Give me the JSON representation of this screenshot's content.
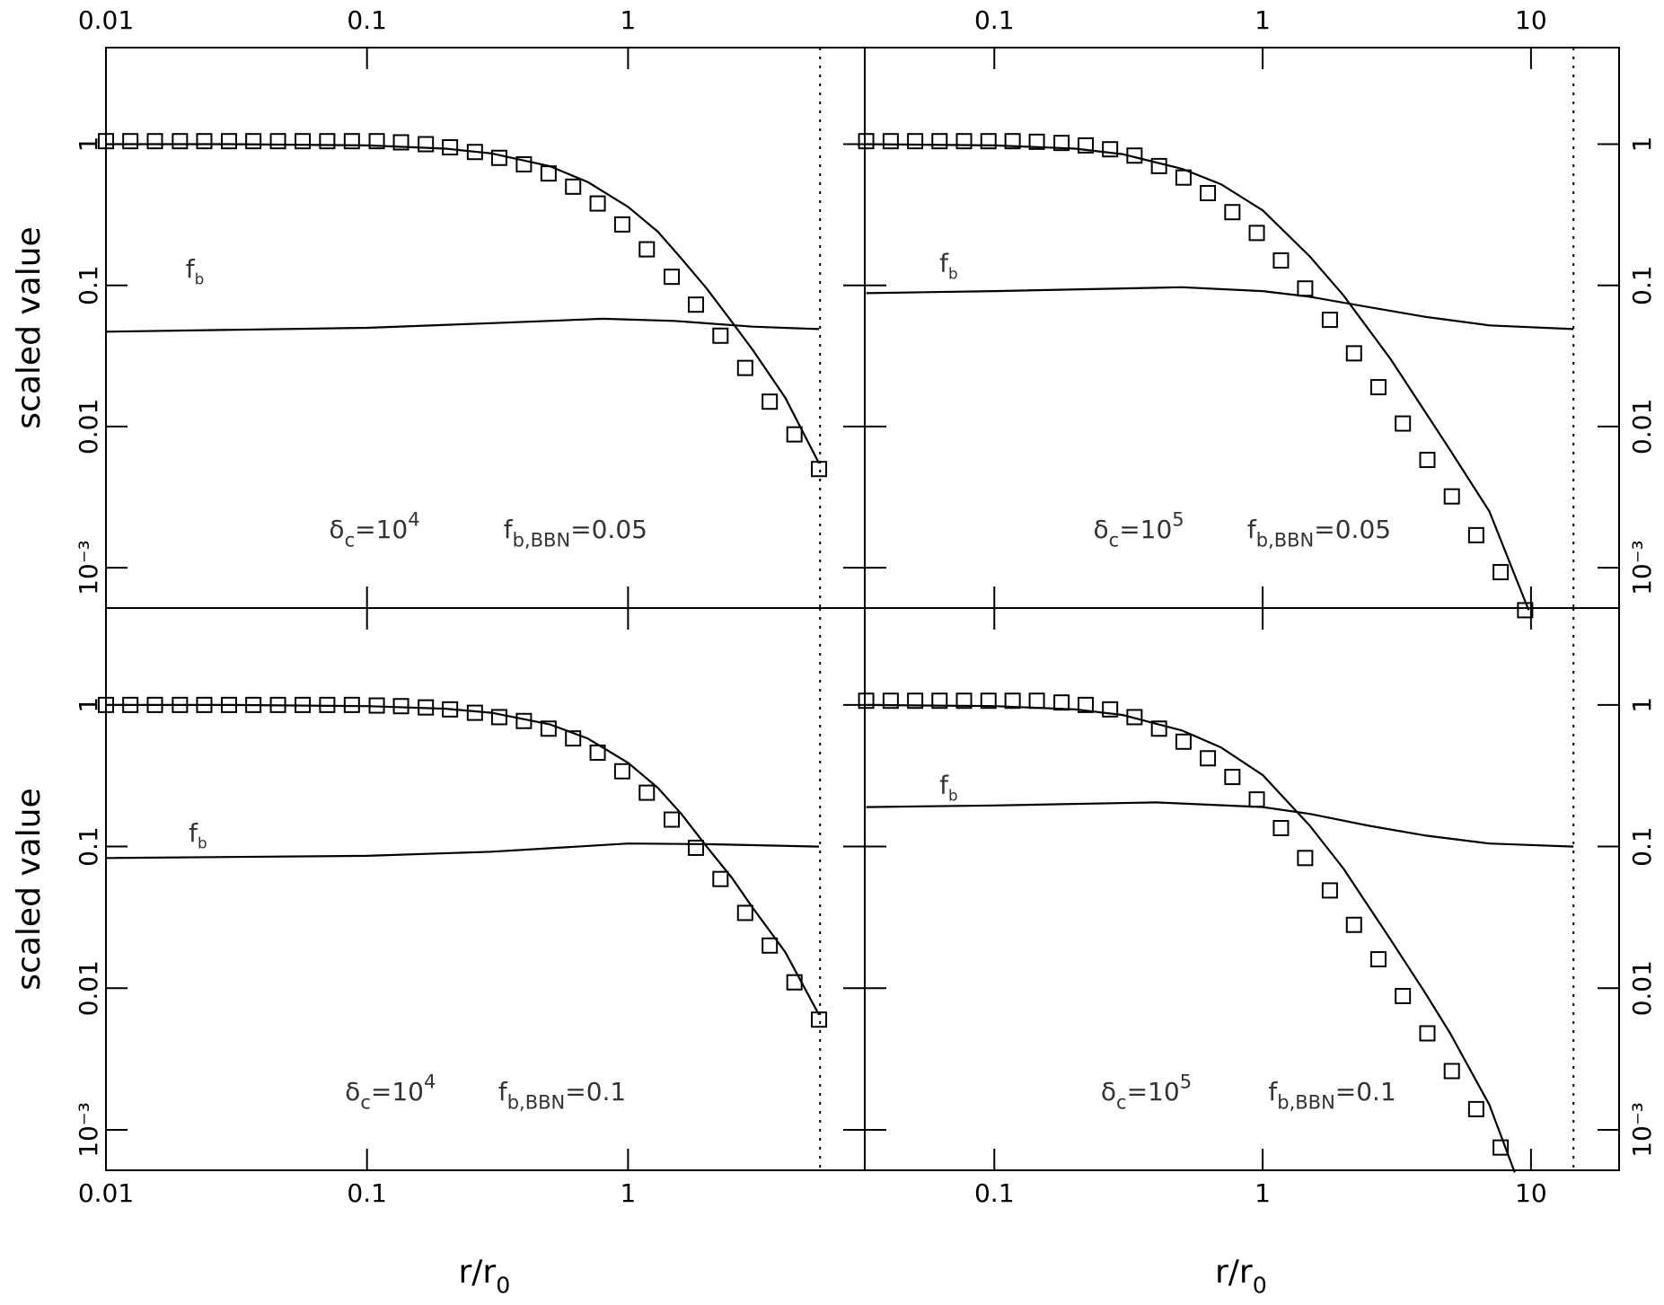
{
  "chart_data": [
    {
      "type": "line",
      "log_x": true,
      "log_y": true,
      "x_tick_labels": "top",
      "y_tick_labels": "left",
      "color": "#000000",
      "ylabel": "scaled value",
      "xlim": [
        0.01,
        8.07
      ],
      "ylim": [
        0.000518,
        4.83
      ],
      "xticks": [
        0.01,
        0.1,
        1
      ],
      "yticks": [
        1,
        0.1,
        0.01,
        {
          "value": 0.001,
          "label": "10⁻³"
        }
      ],
      "vline": 5.44,
      "series": [
        {
          "marker": "square",
          "x": [
            0.01,
            0.0124,
            0.0154,
            0.0192,
            0.0238,
            0.0296,
            0.0367,
            0.0456,
            0.0567,
            0.0704,
            0.0875,
            0.109,
            0.135,
            0.168,
            0.208,
            0.259,
            0.321,
            0.399,
            0.496,
            0.616,
            0.765,
            0.95,
            1.18,
            1.47,
            1.82,
            2.26,
            2.81,
            3.49,
            4.34,
            5.39
          ],
          "values": [
            1.05,
            1.05,
            1.05,
            1.05,
            1.05,
            1.05,
            1.05,
            1.05,
            1.05,
            1.05,
            1.05,
            1.05,
            1.03,
            1.0,
            0.95,
            0.88,
            0.8,
            0.72,
            0.62,
            0.5,
            0.38,
            0.27,
            0.18,
            0.115,
            0.073,
            0.044,
            0.026,
            0.015,
            0.0088,
            0.005
          ]
        },
        {
          "x": [
            0.01,
            0.03,
            0.1,
            0.2,
            0.3,
            0.5,
            0.7,
            1,
            1.3,
            1.6,
            2,
            2.5,
            3,
            4,
            5.39
          ],
          "values": [
            1.0,
            1.0,
            0.98,
            0.93,
            0.86,
            0.7,
            0.54,
            0.36,
            0.24,
            0.155,
            0.095,
            0.055,
            0.035,
            0.016,
            0.0055
          ]
        },
        {
          "x": [
            0.01,
            0.1,
            0.3,
            0.8,
            1.5,
            3,
            5.39
          ],
          "values": [
            0.047,
            0.05,
            0.054,
            0.058,
            0.056,
            0.051,
            0.049
          ]
        }
      ],
      "annotations": [
        {
          "main": "f",
          "sub": "b"
        },
        {
          "main": "δ",
          "sub": "c",
          "after": "=10",
          "sup": "4"
        },
        {
          "main": "f",
          "sub": "b,BBN",
          "after": "=0.05"
        }
      ]
    },
    {
      "type": "line",
      "log_x": true,
      "log_y": true,
      "x_tick_labels": "top",
      "y_tick_labels": "right",
      "color": "#000000",
      "xlim": [
        0.0329,
        21.3
      ],
      "ylim": [
        0.000518,
        4.83
      ],
      "xticks": [
        0.1,
        1,
        10
      ],
      "yticks": [
        1,
        0.1,
        0.01,
        {
          "value": 0.001,
          "label": "10⁻³"
        }
      ],
      "vline": 14.4,
      "series": [
        {
          "marker": "square",
          "x": [
            0.0333,
            0.0411,
            0.0507,
            0.0625,
            0.0771,
            0.0951,
            0.117,
            0.144,
            0.178,
            0.219,
            0.27,
            0.333,
            0.411,
            0.507,
            0.625,
            0.771,
            0.951,
            1.17,
            1.44,
            1.78,
            2.19,
            2.7,
            3.33,
            4.11,
            5.07,
            6.25,
            7.71,
            9.51
          ],
          "values": [
            1.05,
            1.05,
            1.05,
            1.05,
            1.05,
            1.05,
            1.05,
            1.04,
            1.02,
            0.98,
            0.92,
            0.83,
            0.7,
            0.58,
            0.45,
            0.33,
            0.235,
            0.15,
            0.095,
            0.057,
            0.033,
            0.019,
            0.0105,
            0.0058,
            0.0032,
            0.0017,
            0.00093,
            0.0005
          ]
        },
        {
          "x": [
            0.0333,
            0.1,
            0.2,
            0.3,
            0.5,
            0.7,
            1,
            1.5,
            2,
            3,
            4,
            5,
            7,
            9.8
          ],
          "values": [
            1.0,
            0.98,
            0.93,
            0.85,
            0.67,
            0.52,
            0.34,
            0.16,
            0.085,
            0.03,
            0.013,
            0.0068,
            0.0025,
            0.0005
          ]
        },
        {
          "x": [
            0.0333,
            0.1,
            0.5,
            1,
            1.5,
            2.5,
            4,
            7,
            14.4
          ],
          "values": [
            0.088,
            0.091,
            0.097,
            0.091,
            0.083,
            0.07,
            0.06,
            0.052,
            0.049
          ]
        }
      ],
      "annotations": [
        {
          "main": "f",
          "sub": "b"
        },
        {
          "main": "δ",
          "sub": "c",
          "after": "=10",
          "sup": "5"
        },
        {
          "main": "f",
          "sub": "b,BBN",
          "after": "=0.05"
        }
      ]
    },
    {
      "type": "line",
      "log_x": true,
      "log_y": true,
      "x_tick_labels": "bottom",
      "y_tick_labels": "left",
      "color": "#000000",
      "ylabel": "scaled value",
      "xlabel": {
        "main": "r/r",
        "sub": "0"
      },
      "xlim": [
        0.01,
        8.07
      ],
      "ylim": [
        0.000518,
        4.83
      ],
      "xticks": [
        0.01,
        0.1,
        1
      ],
      "yticks": [
        1,
        0.1,
        0.01,
        {
          "value": 0.001,
          "label": "10⁻³"
        }
      ],
      "vline": 5.44,
      "series": [
        {
          "marker": "square",
          "x": [
            0.01,
            0.0124,
            0.0154,
            0.0192,
            0.0238,
            0.0296,
            0.0367,
            0.0456,
            0.0567,
            0.0704,
            0.0875,
            0.109,
            0.135,
            0.168,
            0.208,
            0.259,
            0.321,
            0.399,
            0.496,
            0.616,
            0.765,
            0.95,
            1.18,
            1.47,
            1.82,
            2.26,
            2.81,
            3.49,
            4.34,
            5.39
          ],
          "values": [
            1.0,
            1.0,
            1.0,
            1.0,
            1.0,
            1.0,
            1.0,
            1.0,
            1.0,
            1.0,
            1.0,
            0.99,
            0.98,
            0.96,
            0.93,
            0.88,
            0.82,
            0.77,
            0.68,
            0.58,
            0.46,
            0.34,
            0.24,
            0.155,
            0.098,
            0.059,
            0.034,
            0.02,
            0.011,
            0.006
          ]
        },
        {
          "x": [
            0.01,
            0.03,
            0.1,
            0.2,
            0.3,
            0.5,
            0.7,
            1,
            1.3,
            1.6,
            2,
            2.5,
            3,
            4,
            5.39
          ],
          "values": [
            1.0,
            1.0,
            0.98,
            0.94,
            0.88,
            0.73,
            0.58,
            0.39,
            0.26,
            0.17,
            0.1,
            0.06,
            0.037,
            0.018,
            0.0065
          ]
        },
        {
          "x": [
            0.01,
            0.1,
            0.3,
            1,
            2,
            5.39
          ],
          "values": [
            0.083,
            0.086,
            0.092,
            0.105,
            0.104,
            0.1
          ]
        }
      ],
      "annotations": [
        {
          "main": "f",
          "sub": "b"
        },
        {
          "main": "δ",
          "sub": "c",
          "after": "=10",
          "sup": "4"
        },
        {
          "main": "f",
          "sub": "b,BBN",
          "after": "=0.1"
        }
      ]
    },
    {
      "type": "line",
      "log_x": true,
      "log_y": true,
      "x_tick_labels": "bottom",
      "y_tick_labels": "right",
      "color": "#000000",
      "xlabel": {
        "main": "r/r",
        "sub": "0"
      },
      "xlim": [
        0.0329,
        21.3
      ],
      "ylim": [
        0.000518,
        4.83
      ],
      "xticks": [
        0.1,
        1,
        10
      ],
      "yticks": [
        1,
        0.1,
        0.01,
        {
          "value": 0.001,
          "label": "10⁻³"
        }
      ],
      "vline": 14.4,
      "series": [
        {
          "marker": "square",
          "x": [
            0.0333,
            0.0411,
            0.0507,
            0.0625,
            0.0771,
            0.0951,
            0.117,
            0.144,
            0.178,
            0.219,
            0.27,
            0.333,
            0.411,
            0.507,
            0.625,
            0.771,
            0.951,
            1.17,
            1.44,
            1.78,
            2.19,
            2.7,
            3.33,
            4.11,
            5.07,
            6.25,
            7.71
          ],
          "values": [
            1.07,
            1.07,
            1.07,
            1.07,
            1.07,
            1.07,
            1.07,
            1.07,
            1.04,
            1.0,
            0.93,
            0.82,
            0.68,
            0.55,
            0.42,
            0.31,
            0.215,
            0.135,
            0.083,
            0.049,
            0.028,
            0.016,
            0.0088,
            0.0048,
            0.0026,
            0.0014,
            0.00075
          ]
        },
        {
          "x": [
            0.0333,
            0.1,
            0.2,
            0.3,
            0.5,
            0.7,
            1,
            1.5,
            2,
            3,
            4,
            5,
            7,
            8.7
          ],
          "values": [
            1.0,
            0.98,
            0.93,
            0.85,
            0.66,
            0.5,
            0.32,
            0.14,
            0.07,
            0.022,
            0.0095,
            0.0048,
            0.0015,
            0.0005
          ]
        },
        {
          "x": [
            0.0333,
            0.1,
            0.4,
            1,
            1.5,
            2.5,
            4,
            7,
            14.4
          ],
          "values": [
            0.19,
            0.195,
            0.205,
            0.19,
            0.17,
            0.14,
            0.12,
            0.105,
            0.1
          ]
        }
      ],
      "annotations": [
        {
          "main": "f",
          "sub": "b"
        },
        {
          "main": "δ",
          "sub": "c",
          "after": "=10",
          "sup": "5"
        },
        {
          "main": "f",
          "sub": "b,BBN",
          "after": "=0.1"
        }
      ]
    }
  ]
}
